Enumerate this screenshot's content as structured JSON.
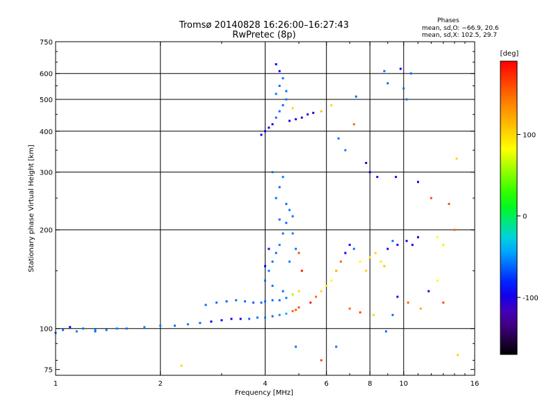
{
  "chart_data": {
    "type": "scatter",
    "title": "Tromsø 20140828 16:26:00–16:27:43",
    "subtitle": "RwPretec (8p)",
    "stats": {
      "heading": "Phases",
      "line_o": "mean, sd,O: −66.9, 20.6",
      "line_x": "mean, sd,X: 102.5, 29.7"
    },
    "xlabel": "Frequency [MHz]",
    "ylabel": "Stationary phase Virtual Height [km]",
    "xscale": "log",
    "yscale": "log",
    "xlim": [
      1,
      16
    ],
    "ylim": [
      72,
      750
    ],
    "grid": true,
    "x_major_ticks": [
      2,
      4,
      6,
      8,
      10
    ],
    "y_major_ticks": [
      100,
      200,
      300,
      400,
      500,
      600
    ],
    "x_tick_labels": [
      {
        "value": 1,
        "label": "1"
      },
      {
        "value": 2,
        "label": "2"
      },
      {
        "value": 4,
        "label": "4"
      },
      {
        "value": 6,
        "label": "6"
      },
      {
        "value": 8,
        "label": "8"
      },
      {
        "value": 10,
        "label": "10"
      },
      {
        "value": 16,
        "label": "16"
      }
    ],
    "y_tick_labels": [
      {
        "value": 75,
        "label": "75"
      },
      {
        "value": 100,
        "label": "100"
      },
      {
        "value": 200,
        "label": "200"
      },
      {
        "value": 300,
        "label": "300"
      },
      {
        "value": 400,
        "label": "400"
      },
      {
        "value": 500,
        "label": "500"
      },
      {
        "value": 600,
        "label": "600"
      },
      {
        "value": 750,
        "label": "750"
      }
    ],
    "colorbar": {
      "label": "[deg]",
      "range": [
        -170,
        190
      ],
      "ticks": [
        {
          "value": 100,
          "label": "100"
        },
        {
          "value": 0,
          "label": "0"
        },
        {
          "value": -100,
          "label": "-100"
        }
      ],
      "colormap": "rainbow"
    },
    "series": [
      {
        "trace": "low-trace",
        "points": [
          [
            1.0,
            97,
            -60
          ],
          [
            1.05,
            99,
            -60
          ],
          [
            1.1,
            101,
            -90
          ],
          [
            1.15,
            98,
            -55
          ],
          [
            1.2,
            100,
            -60
          ],
          [
            1.3,
            99,
            -55
          ],
          [
            1.4,
            99,
            -60
          ],
          [
            1.5,
            100,
            -55
          ],
          [
            1.6,
            100,
            -60
          ],
          [
            1.8,
            101,
            -50
          ],
          [
            2.0,
            102,
            -55
          ],
          [
            2.2,
            102,
            -60
          ],
          [
            2.4,
            103,
            -55
          ],
          [
            2.6,
            104,
            -60
          ],
          [
            2.8,
            105,
            -90
          ],
          [
            3.0,
            106,
            -90
          ],
          [
            3.2,
            107,
            -100
          ],
          [
            3.4,
            107,
            -95
          ],
          [
            3.6,
            107,
            -60
          ],
          [
            3.8,
            108,
            -60
          ],
          [
            4.0,
            108,
            -55
          ],
          [
            4.2,
            109,
            -60
          ],
          [
            4.4,
            110,
            -50
          ],
          [
            4.6,
            111,
            -40
          ],
          [
            4.8,
            113,
            150
          ],
          [
            4.9,
            114,
            155
          ],
          [
            5.0,
            116,
            160
          ]
        ]
      },
      {
        "trace": "o-trace-mid",
        "points": [
          [
            2.7,
            118,
            -60
          ],
          [
            2.9,
            120,
            -60
          ],
          [
            3.1,
            121,
            -65
          ],
          [
            3.3,
            122,
            -60
          ],
          [
            3.5,
            121,
            -60
          ],
          [
            3.7,
            120,
            -65
          ],
          [
            3.9,
            120,
            -60
          ],
          [
            4.0,
            121,
            -60
          ],
          [
            4.2,
            122,
            -60
          ],
          [
            4.4,
            122,
            -60
          ],
          [
            4.6,
            124,
            -55
          ],
          [
            4.8,
            127,
            60
          ],
          [
            5.0,
            130,
            100
          ]
        ]
      },
      {
        "trace": "o-cusp",
        "points": [
          [
            4.0,
            140,
            -60
          ],
          [
            4.1,
            150,
            -55
          ],
          [
            4.2,
            160,
            -60
          ],
          [
            4.3,
            170,
            -60
          ],
          [
            4.4,
            180,
            -55
          ],
          [
            4.5,
            195,
            -60
          ],
          [
            4.6,
            210,
            -60
          ],
          [
            4.7,
            230,
            -55
          ],
          [
            4.3,
            250,
            -60
          ],
          [
            4.4,
            270,
            -60
          ],
          [
            4.5,
            290,
            -55
          ],
          [
            4.2,
            300,
            -60
          ],
          [
            4.0,
            155,
            -90
          ],
          [
            4.1,
            175,
            -100
          ],
          [
            4.4,
            215,
            -60
          ],
          [
            4.6,
            240,
            -60
          ],
          [
            4.8,
            195,
            -55
          ],
          [
            4.9,
            175,
            -60
          ],
          [
            4.2,
            135,
            -60
          ],
          [
            4.5,
            130,
            -60
          ],
          [
            4.7,
            160,
            -55
          ],
          [
            4.8,
            220,
            -60
          ],
          [
            5.0,
            170,
            160
          ],
          [
            5.1,
            150,
            180
          ]
        ]
      },
      {
        "trace": "f2-echo",
        "points": [
          [
            3.9,
            390,
            -90
          ],
          [
            4.0,
            400,
            -100
          ],
          [
            4.1,
            410,
            -95
          ],
          [
            4.2,
            420,
            -90
          ],
          [
            4.3,
            440,
            -60
          ],
          [
            4.4,
            460,
            -60
          ],
          [
            4.5,
            480,
            -60
          ],
          [
            4.6,
            500,
            -60
          ],
          [
            4.3,
            520,
            -55
          ],
          [
            4.4,
            550,
            -60
          ],
          [
            4.5,
            580,
            -60
          ],
          [
            4.4,
            610,
            -90
          ],
          [
            4.3,
            640,
            -95
          ],
          [
            4.7,
            430,
            -100
          ],
          [
            4.9,
            435,
            -100
          ],
          [
            5.1,
            440,
            -110
          ],
          [
            5.3,
            450,
            -105
          ],
          [
            5.5,
            455,
            -100
          ],
          [
            4.8,
            470,
            100
          ],
          [
            4.6,
            530,
            -60
          ]
        ]
      },
      {
        "trace": "x-trace",
        "points": [
          [
            5.4,
            120,
            180
          ],
          [
            5.6,
            125,
            150
          ],
          [
            5.8,
            130,
            100
          ],
          [
            6.0,
            135,
            90
          ],
          [
            6.2,
            140,
            80
          ],
          [
            6.4,
            150,
            120
          ],
          [
            6.6,
            160,
            150
          ],
          [
            6.8,
            170,
            -90
          ],
          [
            7.0,
            180,
            -100
          ],
          [
            7.2,
            175,
            -60
          ],
          [
            7.5,
            160,
            80
          ],
          [
            7.8,
            150,
            100
          ],
          [
            8.0,
            165,
            90
          ],
          [
            8.3,
            170,
            100
          ],
          [
            8.6,
            160,
            90
          ],
          [
            8.8,
            155,
            110
          ],
          [
            9.0,
            175,
            -100
          ],
          [
            9.3,
            185,
            -60
          ],
          [
            9.6,
            180,
            -100
          ],
          [
            10.2,
            185,
            -100
          ],
          [
            10.6,
            180,
            -90
          ],
          [
            11.0,
            190,
            -100
          ],
          [
            12.5,
            190,
            80
          ],
          [
            13.0,
            180,
            90
          ],
          [
            14.0,
            200,
            150
          ]
        ]
      },
      {
        "trace": "scatter-high",
        "points": [
          [
            5.8,
            460,
            110
          ],
          [
            6.2,
            480,
            100
          ],
          [
            6.5,
            380,
            -60
          ],
          [
            6.8,
            350,
            -55
          ],
          [
            7.2,
            420,
            150
          ],
          [
            7.3,
            510,
            -60
          ],
          [
            7.8,
            320,
            -100
          ],
          [
            8.0,
            300,
            -90
          ],
          [
            8.4,
            290,
            -100
          ],
          [
            8.8,
            610,
            -60
          ],
          [
            9.0,
            560,
            -60
          ],
          [
            9.5,
            290,
            -100
          ],
          [
            9.8,
            620,
            -100
          ],
          [
            10.0,
            540,
            -60
          ],
          [
            10.2,
            500,
            -60
          ],
          [
            10.5,
            600,
            -60
          ],
          [
            11.0,
            280,
            -100
          ],
          [
            12.0,
            250,
            160
          ],
          [
            13.5,
            240,
            160
          ],
          [
            14.2,
            330,
            100
          ]
        ]
      },
      {
        "trace": "scatter-low",
        "points": [
          [
            4.9,
            88,
            -60
          ],
          [
            5.8,
            80,
            160
          ],
          [
            6.4,
            88,
            -60
          ],
          [
            7.0,
            115,
            150
          ],
          [
            7.5,
            112,
            160
          ],
          [
            8.2,
            110,
            100
          ],
          [
            8.9,
            98,
            -60
          ],
          [
            9.3,
            110,
            -60
          ],
          [
            9.6,
            125,
            -100
          ],
          [
            10.3,
            120,
            150
          ],
          [
            11.2,
            115,
            120
          ],
          [
            11.8,
            130,
            -100
          ],
          [
            12.5,
            140,
            80
          ],
          [
            13.0,
            120,
            160
          ],
          [
            14.3,
            83,
            100
          ],
          [
            2.3,
            77,
            100
          ],
          [
            1.3,
            98,
            -60
          ]
        ]
      }
    ]
  }
}
